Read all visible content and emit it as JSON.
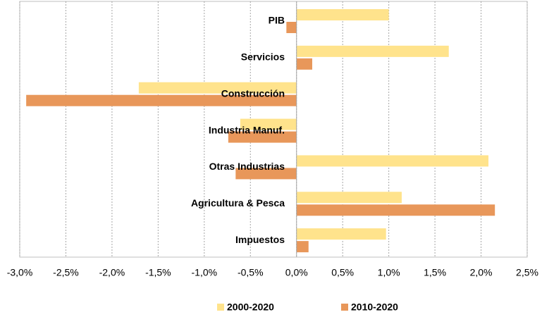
{
  "chart_data": {
    "type": "barh",
    "categories": [
      "PIB",
      "Servicios",
      "Construcción",
      "Industria Manuf.",
      "Otras Industrias",
      "Agricultura & Pesca",
      "Impuestos"
    ],
    "series": [
      {
        "name": "2000-2020",
        "color": "#ffe38c",
        "values": [
          1.0,
          1.65,
          -1.71,
          -0.61,
          2.08,
          1.14,
          0.97
        ]
      },
      {
        "name": "2010-2020",
        "color": "#e8975a",
        "values": [
          -0.11,
          0.17,
          -2.93,
          -0.74,
          -0.66,
          2.15,
          0.13
        ]
      }
    ],
    "xlim": [
      -3,
      2.5
    ],
    "xticks": [
      {
        "value": -3,
        "label": "-3,0%"
      },
      {
        "value": -2.5,
        "label": "-2,5%"
      },
      {
        "value": -2,
        "label": "-2,0%"
      },
      {
        "value": -1.5,
        "label": "-1,5%"
      },
      {
        "value": -1,
        "label": "-1,0%"
      },
      {
        "value": -0.5,
        "label": "-0,5%"
      },
      {
        "value": 0,
        "label": "0,0%"
      },
      {
        "value": 0.5,
        "label": "0,5%"
      },
      {
        "value": 1,
        "label": "1,0%"
      },
      {
        "value": 1.5,
        "label": "1,5%"
      },
      {
        "value": 2,
        "label": "2,0%"
      },
      {
        "value": 2.5,
        "label": "2,5%"
      }
    ],
    "grid": true,
    "legend": "bottom"
  }
}
